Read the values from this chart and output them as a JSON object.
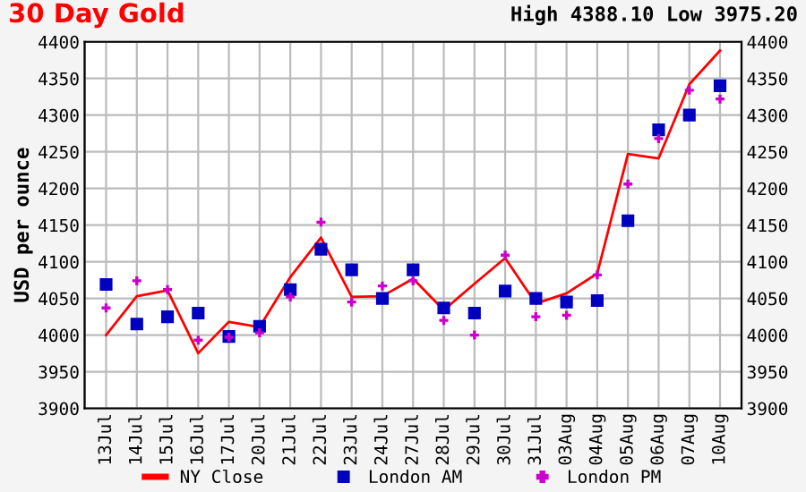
{
  "chart_data": {
    "type": "line",
    "title": "30 Day Gold",
    "subtitle": "High 4388.10 Low 3975.20",
    "ylabel": "USD per ounce",
    "categories": [
      "13Jul",
      "14Jul",
      "15Jul",
      "16Jul",
      "17Jul",
      "20Jul",
      "21Jul",
      "22Jul",
      "23Jul",
      "24Jul",
      "27Jul",
      "28Jul",
      "29Jul",
      "30Jul",
      "31Jul",
      "03Aug",
      "04Aug",
      "05Aug",
      "06Aug",
      "07Aug",
      "10Aug"
    ],
    "series": [
      {
        "name": "NY Close",
        "marker": "none",
        "color": "#ff0000",
        "values": [
          4000,
          4053,
          4061,
          3975.2,
          4018,
          4011,
          4079,
          4133,
          4052,
          4053,
          4077,
          4034,
          4070,
          4105,
          4043,
          4057,
          4084,
          4247,
          4241,
          4342,
          4388.1
        ]
      },
      {
        "name": "London AM",
        "type": "scatter",
        "marker": "square",
        "color": "#0000c0",
        "values": [
          4069,
          4015,
          4025,
          4030,
          3998,
          4012,
          4062,
          4117,
          4089,
          4050,
          4089,
          4037,
          4030,
          4060,
          4050,
          4045,
          4047,
          4156,
          4280,
          4300,
          4340
        ]
      },
      {
        "name": "London PM",
        "type": "scatter",
        "marker": "cross",
        "color": "#cc00cc",
        "values": [
          4037,
          4074,
          4062,
          3993,
          3997,
          4003,
          4052,
          4154,
          4045,
          4067,
          4074,
          4020,
          4000,
          4109,
          4025,
          4027,
          4082,
          4206,
          4268,
          4334,
          4322
        ]
      }
    ],
    "ylim": [
      3900,
      4400
    ],
    "yticks": [
      3900,
      3950,
      4000,
      4050,
      4100,
      4150,
      4200,
      4250,
      4300,
      4350,
      4400
    ],
    "y2lim": [
      3900,
      4400
    ],
    "y2ticks": [
      3900,
      3950,
      4000,
      4050,
      4100,
      4150,
      4200,
      4250,
      4300,
      4350,
      4400
    ],
    "grid": true,
    "legend": "bottom"
  }
}
